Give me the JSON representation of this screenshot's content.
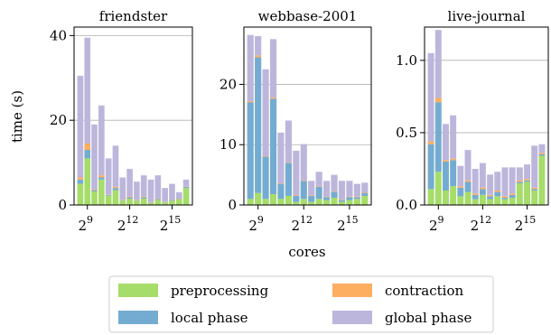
{
  "figure": {
    "ylabel": "time (s)",
    "xlabel": "cores"
  },
  "legend": {
    "items": [
      {
        "label": "preprocessing",
        "color": "#a6dc6a"
      },
      {
        "label": "contraction",
        "color": "#fdae61"
      },
      {
        "label": "local phase",
        "color": "#74acd1"
      },
      {
        "label": "global phase",
        "color": "#bcb6dc"
      }
    ]
  },
  "chart_data": [
    {
      "type": "bar",
      "stacked": true,
      "title": "friendster",
      "ylim": [
        0,
        42
      ],
      "yticks": [
        0,
        20,
        40
      ],
      "grid": true,
      "xtick_exponents": [
        "9",
        "12",
        "15"
      ],
      "xticks_at_index": [
        1,
        7,
        13
      ],
      "series": [
        {
          "name": "preprocessing",
          "values": [
            5.0,
            11.0,
            3.2,
            6.0,
            2.2,
            3.5,
            1.0,
            1.5,
            1.0,
            1.5,
            0.5,
            1.2,
            0.6,
            1.0,
            1.3,
            4.0
          ]
        },
        {
          "name": "local phase",
          "values": [
            1.0,
            2.0,
            0.3,
            0.5,
            0.2,
            0.5,
            0.1,
            0.3,
            0.1,
            0.3,
            0.1,
            0.2,
            0.1,
            0.2,
            0.1,
            0.3
          ]
        },
        {
          "name": "contraction",
          "values": [
            0.5,
            1.5,
            0.2,
            0.5,
            0.1,
            0.3,
            0.1,
            0.2,
            0.1,
            0.2,
            0.1,
            0.1,
            0.1,
            0.1,
            0.1,
            0.1
          ]
        },
        {
          "name": "global phase",
          "values": [
            24.0,
            25.0,
            15.3,
            16.5,
            8.5,
            9.7,
            5.3,
            6.5,
            4.3,
            5.0,
            5.3,
            5.5,
            3.2,
            3.7,
            1.5,
            1.6
          ]
        }
      ]
    },
    {
      "type": "bar",
      "stacked": true,
      "title": "webbase-2001",
      "ylim": [
        0,
        29.5
      ],
      "yticks": [
        0,
        10,
        20
      ],
      "grid": true,
      "xtick_exponents": [
        "9",
        "12",
        "15"
      ],
      "xticks_at_index": [
        1,
        7,
        13
      ],
      "series": [
        {
          "name": "preprocessing",
          "values": [
            1.0,
            2.0,
            1.0,
            1.8,
            1.0,
            1.5,
            0.5,
            1.0,
            0.5,
            1.0,
            0.8,
            1.2,
            0.5,
            0.8,
            1.0,
            1.5
          ]
        },
        {
          "name": "local phase",
          "values": [
            16.0,
            22.5,
            7.0,
            15.8,
            2.5,
            5.5,
            1.0,
            3.0,
            1.0,
            2.0,
            0.5,
            1.0,
            0.3,
            0.5,
            0.3,
            0.5
          ]
        },
        {
          "name": "contraction",
          "values": [
            0.2,
            0.3,
            0.1,
            0.2,
            0.1,
            0.1,
            0.1,
            0.1,
            0.1,
            0.1,
            0.1,
            0.1,
            0.1,
            0.1,
            0.1,
            0.1
          ]
        },
        {
          "name": "global phase",
          "values": [
            11.0,
            3.2,
            14.4,
            9.7,
            8.4,
            6.9,
            7.4,
            6.0,
            2.4,
            2.4,
            2.6,
            2.7,
            3.1,
            2.6,
            2.1,
            1.6
          ]
        }
      ]
    },
    {
      "type": "bar",
      "stacked": true,
      "title": "live-journal",
      "ylim": [
        0,
        1.23
      ],
      "yticks": [
        0.0,
        0.5,
        1.0
      ],
      "yticklabels": [
        "0.0",
        "0.5",
        "1.0"
      ],
      "grid": true,
      "xtick_exponents": [
        "9",
        "12",
        "15"
      ],
      "xticks_at_index": [
        1,
        7,
        13
      ],
      "series": [
        {
          "name": "preprocessing",
          "values": [
            0.11,
            0.23,
            0.1,
            0.13,
            0.06,
            0.09,
            0.04,
            0.07,
            0.04,
            0.06,
            0.04,
            0.05,
            0.15,
            0.16,
            0.1,
            0.34
          ]
        },
        {
          "name": "local phase",
          "values": [
            0.31,
            0.48,
            0.2,
            0.18,
            0.06,
            0.07,
            0.03,
            0.04,
            0.02,
            0.03,
            0.01,
            0.02,
            0.01,
            0.01,
            0.01,
            0.01
          ]
        },
        {
          "name": "contraction",
          "values": [
            0.02,
            0.03,
            0.01,
            0.01,
            0.01,
            0.01,
            0.01,
            0.01,
            0.01,
            0.01,
            0.01,
            0.01,
            0.01,
            0.01,
            0.01,
            0.01
          ]
        },
        {
          "name": "global phase",
          "values": [
            0.61,
            0.47,
            0.25,
            0.3,
            0.14,
            0.21,
            0.17,
            0.17,
            0.14,
            0.13,
            0.2,
            0.18,
            0.09,
            0.1,
            0.29,
            0.06
          ]
        }
      ]
    }
  ]
}
